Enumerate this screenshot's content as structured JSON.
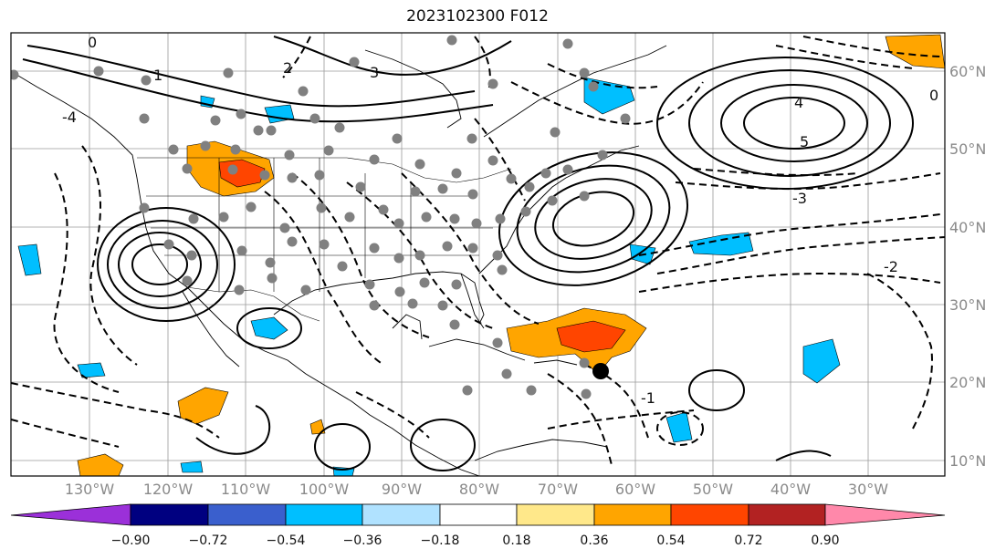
{
  "title": "2023102300 F012",
  "longitude_labels": [
    "130°W",
    "120°W",
    "110°W",
    "100°W",
    "90°W",
    "80°W",
    "70°W",
    "60°W",
    "50°W",
    "40°W",
    "30°W"
  ],
  "latitude_labels": [
    "60°N",
    "50°N",
    "40°N",
    "30°N",
    "20°N",
    "10°N"
  ],
  "colorbar": {
    "tick_labels": [
      "−0.90",
      "−0.72",
      "−0.54",
      "−0.36",
      "−0.18",
      "0.18",
      "0.36",
      "0.54",
      "0.72",
      "0.90"
    ],
    "colors": [
      "#9b30d9",
      "#000080",
      "#3a5fcd",
      "#00bfff",
      "#b0e2ff",
      "#ffffff",
      "#ffe88a",
      "#ffa500",
      "#ff4500",
      "#b22222",
      "#ff88aa"
    ]
  },
  "contour_labels": [
    "0",
    "1",
    "2",
    "3",
    "4",
    "5",
    "0",
    "-1",
    "-2",
    "-3",
    "-4"
  ],
  "colors": {
    "land_outline": "#000000",
    "grid": "#9a9a9a",
    "station_marker": "#808080",
    "highlight_marker": "#000000"
  }
}
